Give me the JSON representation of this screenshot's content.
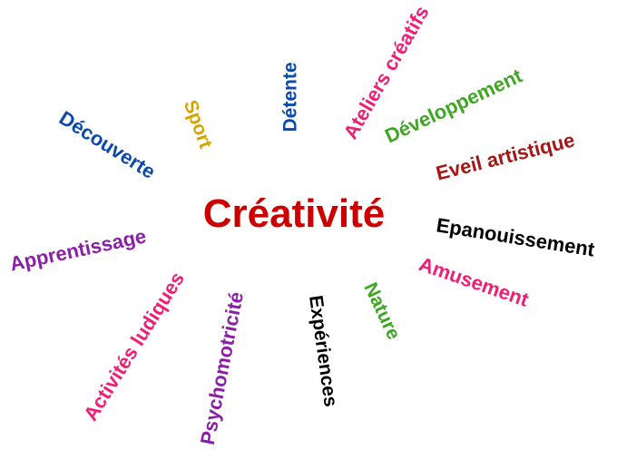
{
  "center": {
    "label": "Créativité",
    "color": "#cc0000"
  },
  "words": [
    {
      "id": "decouverte",
      "label": "Découverte",
      "color": "#0b4aa8"
    },
    {
      "id": "sport",
      "label": "Sport",
      "color": "#d4a400"
    },
    {
      "id": "detente",
      "label": "Détente",
      "color": "#0b4aa8"
    },
    {
      "id": "ateliers-creatifs",
      "label": "Ateliers créatifs",
      "color": "#ee1f75"
    },
    {
      "id": "developpement",
      "label": "Développement",
      "color": "#3fa623"
    },
    {
      "id": "eveil-artistique",
      "label": "Eveil artistique",
      "color": "#a51616"
    },
    {
      "id": "epanouissement",
      "label": "Epanouissement",
      "color": "#000000"
    },
    {
      "id": "amusement",
      "label": "Amusement",
      "color": "#ee1f75"
    },
    {
      "id": "nature",
      "label": "Nature",
      "color": "#3fa623"
    },
    {
      "id": "experiences",
      "label": "Expériences",
      "color": "#000000"
    },
    {
      "id": "psychomotricite",
      "label": "Psychomotricité",
      "color": "#8a1fa6"
    },
    {
      "id": "activites-ludiques",
      "label": "Activités ludiques",
      "color": "#ee1f75"
    },
    {
      "id": "apprentissage",
      "label": "Apprentissage",
      "color": "#8a1fa6"
    }
  ]
}
